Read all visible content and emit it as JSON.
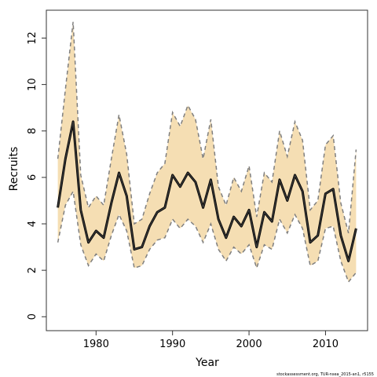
{
  "chart_data": {
    "type": "line",
    "title": "",
    "xlabel": "Year",
    "ylabel": "Recruits",
    "xlim": [
      1973.5,
      2015.5
    ],
    "ylim": [
      -0.6,
      13.2
    ],
    "x_ticks": [
      1980,
      1990,
      2000,
      2010
    ],
    "y_ticks": [
      0,
      2,
      4,
      6,
      8,
      10,
      12
    ],
    "grid": false,
    "legend": "none",
    "colors": {
      "band_fill": "#F5DEB3",
      "band_edge": "#7F7F7F",
      "line": "#404040",
      "line_outline": "#000000"
    },
    "x": [
      1975,
      1976,
      1977,
      1978,
      1979,
      1980,
      1981,
      1982,
      1983,
      1984,
      1985,
      1986,
      1987,
      1988,
      1989,
      1990,
      1991,
      1992,
      1993,
      1994,
      1995,
      1996,
      1997,
      1998,
      1999,
      2000,
      2001,
      2002,
      2003,
      2004,
      2005,
      2006,
      2007,
      2008,
      2009,
      2010,
      2011,
      2012,
      2013,
      2014
    ],
    "series": [
      {
        "role": "estimate",
        "values": [
          4.7,
          6.8,
          8.4,
          4.6,
          3.2,
          3.7,
          3.4,
          4.9,
          6.2,
          5.2,
          2.9,
          3.0,
          3.9,
          4.5,
          4.7,
          6.1,
          5.6,
          6.2,
          5.8,
          4.7,
          5.9,
          4.2,
          3.4,
          4.3,
          3.9,
          4.6,
          3.0,
          4.5,
          4.1,
          5.9,
          5.0,
          6.1,
          5.4,
          3.2,
          3.5,
          5.3,
          5.5,
          3.5,
          2.4,
          3.8
        ]
      },
      {
        "role": "upper",
        "values": [
          6.8,
          9.8,
          12.7,
          6.1,
          4.7,
          5.2,
          4.8,
          6.8,
          8.7,
          7.0,
          4.0,
          4.2,
          5.3,
          6.2,
          6.6,
          8.8,
          8.2,
          9.1,
          8.5,
          6.8,
          8.5,
          5.6,
          4.8,
          6.0,
          5.4,
          6.5,
          4.3,
          6.2,
          5.8,
          8.0,
          6.9,
          8.4,
          7.6,
          4.6,
          5.0,
          7.4,
          7.8,
          4.9,
          3.6,
          7.2
        ]
      },
      {
        "role": "lower",
        "values": [
          3.2,
          4.8,
          5.4,
          3.1,
          2.2,
          2.7,
          2.4,
          3.5,
          4.4,
          3.7,
          2.1,
          2.2,
          2.9,
          3.3,
          3.4,
          4.2,
          3.8,
          4.2,
          3.9,
          3.2,
          4.0,
          2.9,
          2.4,
          3.0,
          2.7,
          3.1,
          2.1,
          3.1,
          2.9,
          4.2,
          3.6,
          4.4,
          3.8,
          2.2,
          2.4,
          3.8,
          3.9,
          2.4,
          1.5,
          1.9
        ]
      }
    ]
  },
  "footnote": "stockassessment.org, TUR-nsea_2015-an1, r5155"
}
